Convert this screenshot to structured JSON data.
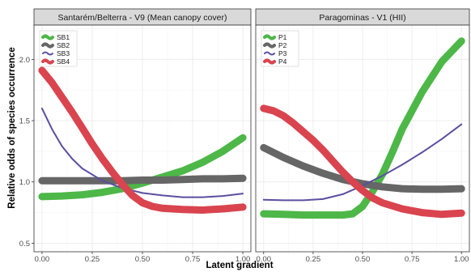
{
  "chart_data": {
    "type": "line",
    "xlabel": "Latent gradient",
    "ylabel": "Relative odds of species occurrence",
    "xlim": [
      -0.04,
      1.04
    ],
    "ylim": [
      0.43,
      2.28
    ],
    "xticks": [
      "0.00",
      "0.25",
      "0.50",
      "0.75",
      "1.00"
    ],
    "yticks": [
      "0.5",
      "1.0",
      "1.5",
      "2.0"
    ],
    "panels": [
      {
        "title": "Santarém/Belterra - V9 (Mean canopy cover)",
        "legend_position": "top-left",
        "series": [
          {
            "name": "SB1",
            "color": "#4db748",
            "x": [
              0,
              0.1,
              0.2,
              0.3,
              0.4,
              0.5,
              0.6,
              0.7,
              0.8,
              0.9,
              1.0
            ],
            "y": [
              0.88,
              0.885,
              0.895,
              0.915,
              0.945,
              0.99,
              1.04,
              1.09,
              1.16,
              1.25,
              1.36
            ]
          },
          {
            "name": "SB2",
            "color": "#666666",
            "x": [
              0,
              0.1,
              0.2,
              0.3,
              0.4,
              0.5,
              0.6,
              0.7,
              0.8,
              0.9,
              1.0
            ],
            "y": [
              1.01,
              1.01,
              1.01,
              1.01,
              1.01,
              1.015,
              1.015,
              1.02,
              1.025,
              1.025,
              1.03
            ]
          },
          {
            "name": "SB3",
            "color": "#5a4fa0",
            "x": [
              0,
              0.05,
              0.1,
              0.15,
              0.2,
              0.3,
              0.4,
              0.5,
              0.6,
              0.7,
              0.8,
              0.9,
              1.0
            ],
            "y": [
              1.6,
              1.43,
              1.29,
              1.19,
              1.11,
              1.01,
              0.95,
              0.91,
              0.89,
              0.875,
              0.875,
              0.885,
              0.905
            ]
          },
          {
            "name": "SB4",
            "color": "#d9444f",
            "x": [
              0,
              0.05,
              0.1,
              0.15,
              0.2,
              0.25,
              0.3,
              0.35,
              0.4,
              0.45,
              0.5,
              0.55,
              0.6,
              0.7,
              0.8,
              0.9,
              1.0
            ],
            "y": [
              1.91,
              1.81,
              1.69,
              1.57,
              1.44,
              1.31,
              1.19,
              1.08,
              0.98,
              0.89,
              0.83,
              0.8,
              0.785,
              0.775,
              0.77,
              0.78,
              0.795
            ]
          }
        ]
      },
      {
        "title": "Paragominas - V1 (HII)",
        "legend_position": "top-left",
        "series": [
          {
            "name": "P1",
            "color": "#4db748",
            "x": [
              0,
              0.1,
              0.2,
              0.3,
              0.4,
              0.45,
              0.5,
              0.55,
              0.6,
              0.65,
              0.7,
              0.8,
              0.9,
              1.0
            ],
            "y": [
              0.74,
              0.735,
              0.73,
              0.73,
              0.73,
              0.74,
              0.8,
              0.92,
              1.06,
              1.24,
              1.43,
              1.73,
              1.98,
              2.15
            ]
          },
          {
            "name": "P2",
            "color": "#666666",
            "x": [
              0,
              0.1,
              0.2,
              0.3,
              0.4,
              0.5,
              0.6,
              0.7,
              0.8,
              0.9,
              1.0
            ],
            "y": [
              1.28,
              1.2,
              1.13,
              1.07,
              1.02,
              0.985,
              0.96,
              0.945,
              0.94,
              0.94,
              0.945
            ]
          },
          {
            "name": "P3",
            "color": "#5a4fa0",
            "x": [
              0,
              0.1,
              0.2,
              0.3,
              0.4,
              0.5,
              0.6,
              0.7,
              0.8,
              0.9,
              1.0
            ],
            "y": [
              0.855,
              0.85,
              0.85,
              0.86,
              0.9,
              0.97,
              1.05,
              1.14,
              1.24,
              1.35,
              1.47
            ]
          },
          {
            "name": "P4",
            "color": "#d9444f",
            "x": [
              0,
              0.05,
              0.1,
              0.15,
              0.2,
              0.25,
              0.3,
              0.35,
              0.4,
              0.45,
              0.5,
              0.55,
              0.6,
              0.7,
              0.8,
              0.9,
              1.0
            ],
            "y": [
              1.6,
              1.58,
              1.54,
              1.48,
              1.41,
              1.34,
              1.26,
              1.17,
              1.08,
              1.0,
              0.93,
              0.87,
              0.83,
              0.78,
              0.75,
              0.735,
              0.745
            ]
          }
        ]
      }
    ]
  }
}
